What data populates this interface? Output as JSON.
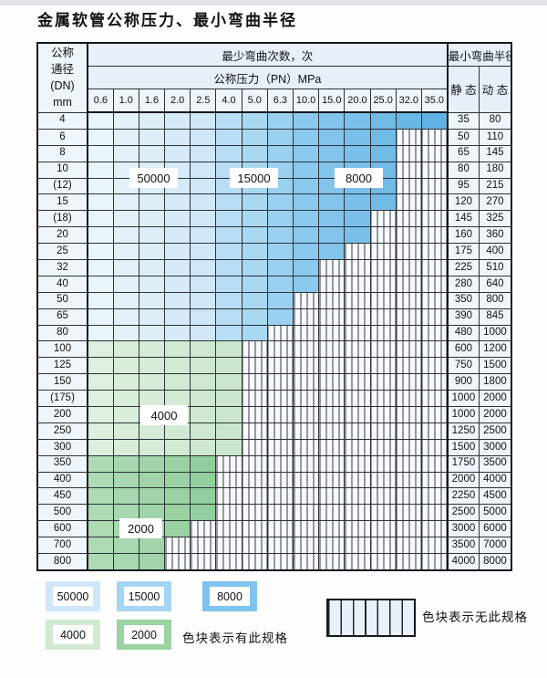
{
  "page": {
    "title": "金属软管公称压力、最小弯曲半径"
  },
  "table": {
    "header": {
      "dn_lines": [
        "公称",
        "通径",
        "(DN)",
        "mm"
      ],
      "bend_times_label": "最少弯曲次数，次",
      "pressure_label": "公称压力（PN）MPa",
      "radius_label": "最小弯曲半径",
      "static_label": "静 态",
      "dynamic_label": "动 态",
      "pressure_columns": [
        "0.6",
        "1.0",
        "1.6",
        "2.0",
        "2.5",
        "4.0",
        "5.0",
        "6.3",
        "10.0",
        "15.0",
        "20.0",
        "25.0",
        "32.0",
        "35.0"
      ]
    },
    "region_labels": {
      "b50000": "50000",
      "b15000": "15000",
      "b8000": "8000",
      "g4000": "4000",
      "g2000": "2000"
    },
    "rows": [
      {
        "dn": "4",
        "colored": 14,
        "group": "blue",
        "static": "35",
        "dynamic": "80"
      },
      {
        "dn": "6",
        "colored": 12,
        "group": "blue",
        "static": "50",
        "dynamic": "110"
      },
      {
        "dn": "8",
        "colored": 12,
        "group": "blue",
        "static": "65",
        "dynamic": "145"
      },
      {
        "dn": "10",
        "colored": 12,
        "group": "blue",
        "static": "80",
        "dynamic": "180"
      },
      {
        "dn": "(12)",
        "colored": 12,
        "group": "blue",
        "static": "95",
        "dynamic": "215"
      },
      {
        "dn": "15",
        "colored": 12,
        "group": "blue",
        "static": "120",
        "dynamic": "270"
      },
      {
        "dn": "(18)",
        "colored": 11,
        "group": "blue",
        "static": "145",
        "dynamic": "325"
      },
      {
        "dn": "20",
        "colored": 11,
        "group": "blue",
        "static": "160",
        "dynamic": "360"
      },
      {
        "dn": "25",
        "colored": 10,
        "group": "blue",
        "static": "175",
        "dynamic": "400"
      },
      {
        "dn": "32",
        "colored": 9,
        "group": "blue",
        "static": "225",
        "dynamic": "510"
      },
      {
        "dn": "40",
        "colored": 9,
        "group": "blue",
        "static": "280",
        "dynamic": "640"
      },
      {
        "dn": "50",
        "colored": 8,
        "group": "blue",
        "static": "350",
        "dynamic": "800"
      },
      {
        "dn": "65",
        "colored": 8,
        "group": "blue",
        "static": "390",
        "dynamic": "845"
      },
      {
        "dn": "80",
        "colored": 7,
        "group": "blue",
        "static": "480",
        "dynamic": "1000"
      },
      {
        "dn": "100",
        "colored": 6,
        "group": "g4000",
        "static": "600",
        "dynamic": "1200"
      },
      {
        "dn": "125",
        "colored": 6,
        "group": "g4000",
        "static": "750",
        "dynamic": "1500"
      },
      {
        "dn": "150",
        "colored": 6,
        "group": "g4000",
        "static": "900",
        "dynamic": "1800"
      },
      {
        "dn": "(175)",
        "colored": 6,
        "group": "g4000",
        "static": "1000",
        "dynamic": "2000"
      },
      {
        "dn": "200",
        "colored": 6,
        "group": "g4000",
        "static": "1000",
        "dynamic": "2000"
      },
      {
        "dn": "250",
        "colored": 6,
        "group": "g4000",
        "static": "1250",
        "dynamic": "2500"
      },
      {
        "dn": "300",
        "colored": 6,
        "group": "g4000",
        "static": "1500",
        "dynamic": "3000"
      },
      {
        "dn": "350",
        "colored": 5,
        "group": "g2000",
        "static": "1750",
        "dynamic": "3500"
      },
      {
        "dn": "400",
        "colored": 5,
        "group": "g2000",
        "static": "2000",
        "dynamic": "4000"
      },
      {
        "dn": "450",
        "colored": 5,
        "group": "g2000",
        "static": "2250",
        "dynamic": "4500"
      },
      {
        "dn": "500",
        "colored": 5,
        "group": "g2000",
        "static": "2500",
        "dynamic": "5000"
      },
      {
        "dn": "600",
        "colored": 4,
        "group": "g2000",
        "static": "3000",
        "dynamic": "6000"
      },
      {
        "dn": "700",
        "colored": 3,
        "group": "g2000",
        "static": "3500",
        "dynamic": "7000"
      },
      {
        "dn": "800",
        "colored": 3,
        "group": "g2000",
        "static": "4000",
        "dynamic": "8000"
      }
    ]
  },
  "colors": {
    "regions": {
      "b50000": {
        "from": "#eaf4fb",
        "to": "#cfe7f6"
      },
      "b15000": {
        "from": "#b7def4",
        "to": "#9bd1f0"
      },
      "b8000": {
        "from": "#8cc9ee",
        "to": "#5fb2e3"
      },
      "g4000": {
        "from": "#ddefde",
        "to": "#cbe6ce"
      },
      "g2000": {
        "from": "#aedbb4",
        "to": "#93cf9e"
      }
    },
    "hatch_bg": "#f7fafc",
    "hatch_line": "#333a40",
    "border": "#2c3237"
  },
  "legend": {
    "items": [
      {
        "label": "50000",
        "color": "#cfe7f8"
      },
      {
        "label": "15000",
        "color": "#a4d5f2"
      },
      {
        "label": "8000",
        "color": "#7ec4ee"
      },
      {
        "label": "4000",
        "color": "#d2e9d4"
      },
      {
        "label": "2000",
        "color": "#9ad2a2"
      }
    ],
    "has_spec_text": "色块表示有此规格",
    "no_spec_text": "色块表示无此规格"
  }
}
